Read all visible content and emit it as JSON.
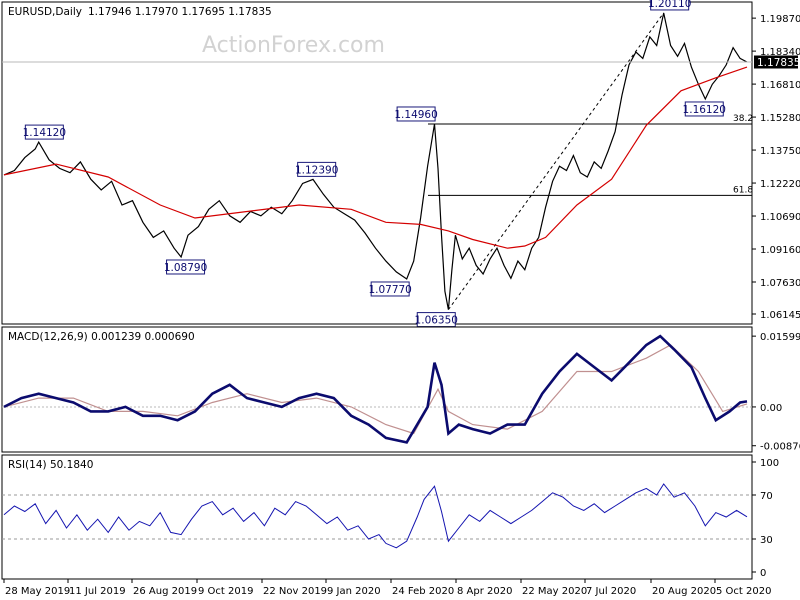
{
  "header": {
    "symbol": "EURUSD,Daily",
    "ohlc": "1.17946 1.17970 1.17695 1.17835"
  },
  "watermark": "ActionForex.com",
  "colors": {
    "price": "#000000",
    "sma": "#d40000",
    "macd": "#0b0b6e",
    "signal": "#c09090",
    "rsi": "#1515b0",
    "grid": "#000000",
    "current_price_bg": "#000000"
  },
  "chart_data": [
    {
      "type": "line",
      "name": "price",
      "header": "EURUSD,Daily 1.17946 1.17970 1.17695 1.17835",
      "x_labels": [
        "28 May 2019",
        "11 Jul 2019",
        "26 Aug 2019",
        "9 Oct 2019",
        "22 Nov 2019",
        "9 Jan 2020",
        "24 Feb 2020",
        "8 Apr 2020",
        "22 May 2020",
        "7 Jul 2020",
        "20 Aug 2020",
        "5 Oct 2020"
      ],
      "y_ticks": [
        "1.19870",
        "1.18340",
        "1.16810",
        "1.15280",
        "1.13750",
        "1.12220",
        "1.10690",
        "1.09160",
        "1.07630",
        "1.06145"
      ],
      "ylim": [
        1.0596,
        1.2034
      ],
      "current_price": "1.17835",
      "keypoints": [
        {
          "label": "1.14120",
          "date": "2019-06-25",
          "value": 1.1412
        },
        {
          "label": "1.08790",
          "date": "2019-10-01",
          "value": 1.0879
        },
        {
          "label": "1.12390",
          "date": "2019-12-31",
          "value": 1.1239
        },
        {
          "label": "1.07770",
          "date": "2020-02-20",
          "value": 1.0777
        },
        {
          "label": "1.14960",
          "date": "2020-03-09",
          "value": 1.1496
        },
        {
          "label": "1.06350",
          "date": "2020-03-23",
          "value": 1.0635
        },
        {
          "label": "1.20110",
          "date": "2020-09-01",
          "value": 1.2011
        },
        {
          "label": "1.16120",
          "date": "2020-09-25",
          "value": 1.1612
        }
      ],
      "fib_levels": [
        {
          "label": "38.2",
          "value": 1.1496
        },
        {
          "label": "61.8",
          "value": 1.1165
        }
      ],
      "close_path": [
        [
          0,
          1.126
        ],
        [
          6,
          1.128
        ],
        [
          12,
          1.134
        ],
        [
          18,
          1.138
        ],
        [
          20,
          1.1412
        ],
        [
          26,
          1.133
        ],
        [
          32,
          1.129
        ],
        [
          38,
          1.127
        ],
        [
          44,
          1.132
        ],
        [
          50,
          1.124
        ],
        [
          56,
          1.119
        ],
        [
          62,
          1.123
        ],
        [
          68,
          1.112
        ],
        [
          74,
          1.114
        ],
        [
          80,
          1.104
        ],
        [
          86,
          1.097
        ],
        [
          92,
          1.1
        ],
        [
          98,
          1.092
        ],
        [
          102,
          1.0879
        ],
        [
          106,
          1.098
        ],
        [
          112,
          1.102
        ],
        [
          118,
          1.11
        ],
        [
          124,
          1.114
        ],
        [
          130,
          1.107
        ],
        [
          136,
          1.104
        ],
        [
          142,
          1.109
        ],
        [
          148,
          1.107
        ],
        [
          154,
          1.111
        ],
        [
          160,
          1.108
        ],
        [
          166,
          1.114
        ],
        [
          172,
          1.122
        ],
        [
          178,
          1.1239
        ],
        [
          184,
          1.117
        ],
        [
          190,
          1.111
        ],
        [
          196,
          1.108
        ],
        [
          202,
          1.105
        ],
        [
          208,
          1.099
        ],
        [
          214,
          1.092
        ],
        [
          220,
          1.086
        ],
        [
          226,
          1.081
        ],
        [
          232,
          1.0777
        ],
        [
          236,
          1.086
        ],
        [
          240,
          1.106
        ],
        [
          244,
          1.13
        ],
        [
          248,
          1.1496
        ],
        [
          250,
          1.129
        ],
        [
          252,
          1.098
        ],
        [
          254,
          1.072
        ],
        [
          256,
          1.0635
        ],
        [
          258,
          1.082
        ],
        [
          260,
          1.098
        ],
        [
          264,
          1.087
        ],
        [
          268,
          1.092
        ],
        [
          272,
          1.084
        ],
        [
          276,
          1.08
        ],
        [
          280,
          1.087
        ],
        [
          284,
          1.092
        ],
        [
          288,
          1.084
        ],
        [
          292,
          1.078
        ],
        [
          296,
          1.086
        ],
        [
          300,
          1.082
        ],
        [
          304,
          1.092
        ],
        [
          308,
          1.097
        ],
        [
          312,
          1.111
        ],
        [
          316,
          1.123
        ],
        [
          320,
          1.13
        ],
        [
          324,
          1.128
        ],
        [
          328,
          1.135
        ],
        [
          332,
          1.127
        ],
        [
          336,
          1.125
        ],
        [
          340,
          1.132
        ],
        [
          344,
          1.129
        ],
        [
          348,
          1.137
        ],
        [
          352,
          1.146
        ],
        [
          356,
          1.163
        ],
        [
          360,
          1.177
        ],
        [
          364,
          1.183
        ],
        [
          368,
          1.18
        ],
        [
          372,
          1.19
        ],
        [
          376,
          1.186
        ],
        [
          380,
          1.2011
        ],
        [
          384,
          1.186
        ],
        [
          388,
          1.181
        ],
        [
          392,
          1.187
        ],
        [
          396,
          1.176
        ],
        [
          400,
          1.168
        ],
        [
          404,
          1.1612
        ],
        [
          408,
          1.168
        ],
        [
          412,
          1.172
        ],
        [
          416,
          1.177
        ],
        [
          420,
          1.185
        ],
        [
          424,
          1.18
        ],
        [
          428,
          1.17835
        ]
      ],
      "sma_path": [
        [
          0,
          1.126
        ],
        [
          30,
          1.131
        ],
        [
          60,
          1.125
        ],
        [
          90,
          1.112
        ],
        [
          110,
          1.106
        ],
        [
          140,
          1.109
        ],
        [
          170,
          1.112
        ],
        [
          200,
          1.11
        ],
        [
          220,
          1.104
        ],
        [
          240,
          1.103
        ],
        [
          256,
          1.1
        ],
        [
          270,
          1.096
        ],
        [
          290,
          1.092
        ],
        [
          300,
          1.093
        ],
        [
          312,
          1.097
        ],
        [
          330,
          1.112
        ],
        [
          350,
          1.124
        ],
        [
          370,
          1.149
        ],
        [
          390,
          1.165
        ],
        [
          410,
          1.171
        ],
        [
          428,
          1.176
        ]
      ]
    },
    {
      "type": "line",
      "name": "MACD",
      "header": "MACD(12,26,9) 0.001239 0.000690",
      "y_ticks": [
        "0.015991",
        "0.00",
        "-0.00876"
      ],
      "ylim": [
        -0.0095,
        0.0167
      ],
      "macd_path": [
        [
          0,
          0.0
        ],
        [
          10,
          0.002
        ],
        [
          20,
          0.003
        ],
        [
          30,
          0.002
        ],
        [
          40,
          0.001
        ],
        [
          50,
          -0.001
        ],
        [
          60,
          -0.001
        ],
        [
          70,
          0.0
        ],
        [
          80,
          -0.002
        ],
        [
          90,
          -0.002
        ],
        [
          100,
          -0.003
        ],
        [
          110,
          -0.001
        ],
        [
          120,
          0.003
        ],
        [
          130,
          0.005
        ],
        [
          140,
          0.002
        ],
        [
          150,
          0.001
        ],
        [
          160,
          0.0
        ],
        [
          170,
          0.002
        ],
        [
          180,
          0.003
        ],
        [
          190,
          0.002
        ],
        [
          200,
          -0.002
        ],
        [
          210,
          -0.004
        ],
        [
          220,
          -0.007
        ],
        [
          232,
          -0.008
        ],
        [
          244,
          0.0
        ],
        [
          248,
          0.01
        ],
        [
          252,
          0.005
        ],
        [
          256,
          -0.006
        ],
        [
          262,
          -0.004
        ],
        [
          270,
          -0.005
        ],
        [
          280,
          -0.006
        ],
        [
          290,
          -0.004
        ],
        [
          300,
          -0.004
        ],
        [
          310,
          0.003
        ],
        [
          320,
          0.008
        ],
        [
          330,
          0.012
        ],
        [
          340,
          0.009
        ],
        [
          350,
          0.006
        ],
        [
          360,
          0.01
        ],
        [
          370,
          0.014
        ],
        [
          378,
          0.016
        ],
        [
          386,
          0.013
        ],
        [
          396,
          0.009
        ],
        [
          404,
          0.002
        ],
        [
          410,
          -0.003
        ],
        [
          418,
          -0.001
        ],
        [
          424,
          0.001
        ],
        [
          428,
          0.00124
        ]
      ],
      "signal_path": [
        [
          0,
          0.0
        ],
        [
          20,
          0.002
        ],
        [
          40,
          0.002
        ],
        [
          60,
          -0.001
        ],
        [
          80,
          -0.001
        ],
        [
          100,
          -0.002
        ],
        [
          120,
          0.001
        ],
        [
          140,
          0.003
        ],
        [
          160,
          0.001
        ],
        [
          180,
          0.002
        ],
        [
          200,
          0.0
        ],
        [
          220,
          -0.004
        ],
        [
          236,
          -0.006
        ],
        [
          250,
          0.004
        ],
        [
          256,
          -0.001
        ],
        [
          270,
          -0.004
        ],
        [
          290,
          -0.005
        ],
        [
          310,
          -0.001
        ],
        [
          330,
          0.008
        ],
        [
          350,
          0.008
        ],
        [
          370,
          0.011
        ],
        [
          384,
          0.014
        ],
        [
          400,
          0.008
        ],
        [
          414,
          -0.001
        ],
        [
          428,
          0.00069
        ]
      ]
    },
    {
      "type": "line",
      "name": "RSI",
      "header": "RSI(14) 50.1840",
      "y_ticks": [
        "100",
        "70",
        "30",
        "0"
      ],
      "ylim": [
        0,
        100
      ],
      "levels": [
        70,
        30
      ],
      "rsi_path": [
        [
          0,
          52
        ],
        [
          6,
          60
        ],
        [
          12,
          55
        ],
        [
          18,
          62
        ],
        [
          24,
          44
        ],
        [
          30,
          56
        ],
        [
          36,
          40
        ],
        [
          42,
          52
        ],
        [
          48,
          38
        ],
        [
          54,
          48
        ],
        [
          60,
          36
        ],
        [
          66,
          50
        ],
        [
          72,
          38
        ],
        [
          78,
          46
        ],
        [
          84,
          42
        ],
        [
          90,
          54
        ],
        [
          96,
          36
        ],
        [
          102,
          34
        ],
        [
          108,
          48
        ],
        [
          114,
          60
        ],
        [
          120,
          64
        ],
        [
          126,
          52
        ],
        [
          132,
          58
        ],
        [
          138,
          46
        ],
        [
          144,
          54
        ],
        [
          150,
          42
        ],
        [
          156,
          58
        ],
        [
          162,
          52
        ],
        [
          168,
          64
        ],
        [
          174,
          60
        ],
        [
          180,
          52
        ],
        [
          186,
          44
        ],
        [
          192,
          50
        ],
        [
          198,
          38
        ],
        [
          204,
          42
        ],
        [
          210,
          30
        ],
        [
          216,
          34
        ],
        [
          220,
          26
        ],
        [
          226,
          22
        ],
        [
          232,
          28
        ],
        [
          238,
          50
        ],
        [
          242,
          66
        ],
        [
          248,
          78
        ],
        [
          252,
          55
        ],
        [
          256,
          28
        ],
        [
          262,
          40
        ],
        [
          268,
          52
        ],
        [
          274,
          46
        ],
        [
          280,
          56
        ],
        [
          286,
          50
        ],
        [
          292,
          44
        ],
        [
          298,
          50
        ],
        [
          304,
          56
        ],
        [
          310,
          64
        ],
        [
          316,
          72
        ],
        [
          322,
          68
        ],
        [
          328,
          60
        ],
        [
          334,
          56
        ],
        [
          340,
          62
        ],
        [
          346,
          54
        ],
        [
          352,
          60
        ],
        [
          358,
          66
        ],
        [
          364,
          72
        ],
        [
          370,
          76
        ],
        [
          376,
          70
        ],
        [
          380,
          80
        ],
        [
          386,
          68
        ],
        [
          392,
          72
        ],
        [
          398,
          60
        ],
        [
          404,
          42
        ],
        [
          410,
          54
        ],
        [
          416,
          50
        ],
        [
          422,
          56
        ],
        [
          428,
          50.2
        ]
      ]
    }
  ]
}
